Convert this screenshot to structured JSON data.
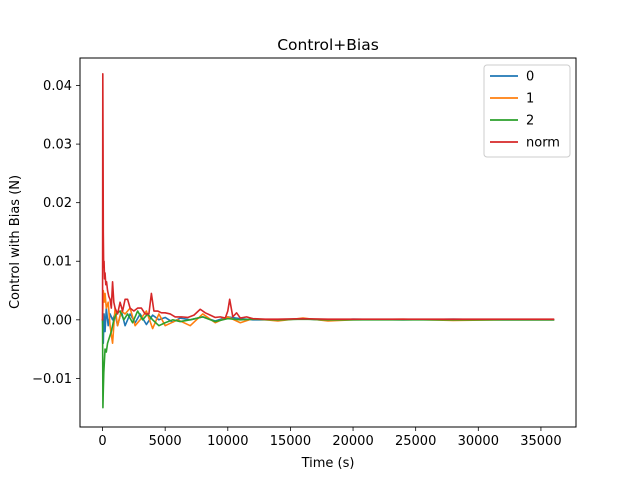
{
  "chart_data": {
    "type": "line",
    "title": "Control+Bias",
    "xlabel": "Time (s)",
    "ylabel": "Control with Bias (N)",
    "xlim": [
      -1800,
      37800
    ],
    "ylim": [
      -0.0183,
      0.0447
    ],
    "xticks": [
      0,
      5000,
      10000,
      15000,
      20000,
      25000,
      30000,
      35000
    ],
    "xtick_labels": [
      "0",
      "5000",
      "10000",
      "15000",
      "20000",
      "25000",
      "30000",
      "35000"
    ],
    "yticks": [
      -0.01,
      0.0,
      0.01,
      0.02,
      0.03,
      0.04
    ],
    "ytick_labels": [
      "−0.01",
      "0.00",
      "0.01",
      "0.02",
      "0.03",
      "0.04"
    ],
    "grid": false,
    "legend": {
      "position": "top-right"
    },
    "series": [
      {
        "name": "0",
        "color": "#1f77b4",
        "x": [
          0,
          60,
          120,
          200,
          300,
          450,
          600,
          800,
          1000,
          1200,
          1500,
          1800,
          2200,
          2600,
          3000,
          3500,
          4000,
          4500,
          5000,
          5600,
          6200,
          7000,
          8000,
          9000,
          10000,
          11000,
          12000,
          14000,
          16000,
          18000,
          20000,
          24000,
          28000,
          32000,
          36000
        ],
        "y": [
          0.0,
          -0.004,
          0.001,
          -0.002,
          0.002,
          -0.001,
          0.001,
          0.0,
          0.001,
          -0.001,
          0.0015,
          -0.001,
          0.001,
          -0.0005,
          0.001,
          -0.0008,
          0.0008,
          0.0,
          0.0004,
          -0.0004,
          0.0003,
          0.0,
          0.0005,
          -0.0002,
          0.0005,
          0.0002,
          0.0,
          0.0,
          0.0002,
          -0.0001,
          0.0001,
          0.0,
          0.0001,
          0.0,
          0.0
        ]
      },
      {
        "name": "1",
        "color": "#ff7f0e",
        "x": [
          0,
          60,
          120,
          200,
          300,
          450,
          600,
          800,
          1000,
          1200,
          1500,
          1800,
          2200,
          2600,
          3000,
          3500,
          4000,
          4500,
          5000,
          6000,
          7000,
          8000,
          9000,
          10000,
          11000,
          12000,
          14000,
          16000,
          18000,
          20000,
          24000,
          28000,
          32000,
          36000
        ],
        "y": [
          0.0,
          0.005,
          0.003,
          0.0045,
          0.002,
          0.003,
          -0.001,
          -0.004,
          0.002,
          -0.001,
          0.0015,
          0.001,
          0.002,
          -0.001,
          0.0,
          0.0015,
          -0.0015,
          0.001,
          -0.001,
          0.0,
          -0.001,
          0.001,
          -0.0005,
          0.0005,
          -0.0005,
          0.0002,
          -0.0002,
          0.0003,
          -0.0002,
          0.0,
          0.0001,
          -0.0001,
          0.0,
          0.0
        ]
      },
      {
        "name": "2",
        "color": "#2ca02c",
        "x": [
          0,
          30,
          60,
          100,
          150,
          200,
          300,
          400,
          550,
          700,
          900,
          1100,
          1400,
          1700,
          2000,
          2400,
          2800,
          3200,
          3600,
          4000,
          4500,
          5000,
          5600,
          6200,
          7000,
          8000,
          9000,
          10000,
          11000,
          12000,
          14000,
          16000,
          18000,
          20000,
          24000,
          28000,
          32000,
          36000
        ],
        "y": [
          0.0,
          -0.015,
          -0.012,
          -0.009,
          -0.007,
          -0.005,
          -0.0055,
          -0.004,
          -0.003,
          -0.002,
          0.0,
          0.001,
          0.0015,
          0.0,
          0.001,
          -0.0005,
          0.0015,
          0.0,
          0.001,
          0.0,
          -0.001,
          -0.0005,
          0.0,
          -0.0003,
          0.0,
          0.0005,
          -0.0003,
          0.0002,
          0.0,
          0.0001,
          0.0,
          0.0001,
          0.0,
          0.0,
          0.0,
          0.0,
          0.0,
          0.0
        ]
      },
      {
        "name": "norm",
        "color": "#d62728",
        "x": [
          0,
          20,
          40,
          60,
          90,
          120,
          160,
          200,
          260,
          320,
          400,
          500,
          600,
          700,
          800,
          900,
          1000,
          1200,
          1400,
          1600,
          1800,
          2000,
          2200,
          2500,
          2800,
          3100,
          3400,
          3700,
          3900,
          4100,
          4400,
          4700,
          5000,
          5400,
          5800,
          6300,
          6800,
          7300,
          7800,
          8200,
          8600,
          9000,
          9400,
          9800,
          10000,
          10150,
          10400,
          10700,
          11000,
          11500,
          12000,
          13000,
          14000,
          16000,
          18000,
          20000,
          22000,
          24000,
          26000,
          28000,
          30000,
          32000,
          34000,
          36000
        ],
        "y": [
          0.0,
          0.042,
          0.03,
          0.015,
          0.009,
          0.01,
          0.007,
          0.008,
          0.006,
          0.0065,
          0.005,
          0.004,
          0.0035,
          0.002,
          0.0065,
          0.003,
          0.002,
          0.001,
          0.003,
          0.0015,
          0.0035,
          0.0035,
          0.002,
          0.0015,
          0.002,
          0.002,
          0.001,
          0.001,
          0.0045,
          0.0015,
          0.0015,
          0.0012,
          0.0012,
          0.001,
          0.0005,
          0.0005,
          0.0004,
          0.0008,
          0.0018,
          0.0012,
          0.0008,
          0.0004,
          0.0005,
          0.0003,
          0.0015,
          0.0035,
          0.0005,
          0.0012,
          0.0003,
          0.0005,
          0.0002,
          0.0001,
          0.0001,
          0.0002,
          0.0001,
          0.0001,
          0.0001,
          0.0001,
          0.0001,
          0.0001,
          0.0001,
          0.0001,
          0.0001,
          0.0001
        ]
      }
    ]
  }
}
